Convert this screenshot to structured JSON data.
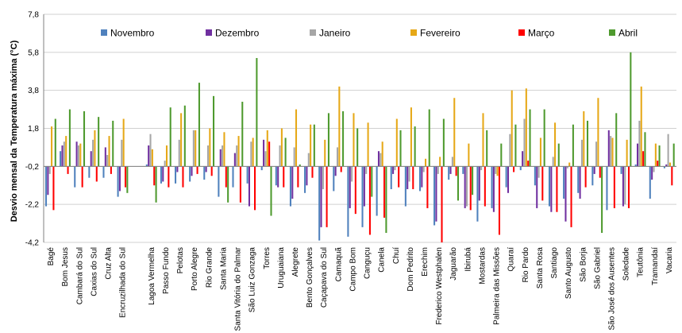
{
  "chart_data": {
    "type": "bar",
    "title": "",
    "xlabel": "",
    "ylabel": "Desvio mensal da Temperatura máxima (°C)",
    "ylim": [
      -4.2,
      7.8
    ],
    "yticks": [
      "7,8",
      "5,8",
      "3,8",
      "1,8",
      "-0,2",
      "-2,2",
      "-4,2"
    ],
    "grid": true,
    "legend_position": "top",
    "colors": [
      "#4f81bd",
      "#7030a0",
      "#a6a6a6",
      "#e6a817",
      "#ff0000",
      "#4e9a2e"
    ],
    "categories": [
      "Bagé",
      "Bom Jesus",
      "Cambará do Sul",
      "Caxias do Sul",
      "Cruz Alta",
      "Encruzilhada do Sul",
      "Lagoa Vermelha",
      "Passo Fundo",
      "Pelotas",
      "Porto Alegre",
      "Rio Grande",
      "Santa Maria",
      "Santa Vitória do Palmar",
      "São Luiz Gonzaga",
      "Torres",
      "Uruguaiana",
      "Alegrete",
      "Bento Gonçalves",
      "Caçapava do Sul",
      "Camaquã",
      "Campo Bom",
      "Canguçu",
      "Canela",
      "Chuí",
      "Dom Pedrito",
      "Erechim",
      "Frederico Westphalen",
      "Jaguarão",
      "Ibirubá",
      "Mostardas",
      "Palmeira das Missões",
      "Quaraí",
      "Rio Pardo",
      "Santa Rosa",
      "Santiago",
      "Santo Augusto",
      "São Borja",
      "São Gabriel",
      "São José dos Ausentes",
      "Soledade",
      "Teutônia",
      "Tramandaí",
      "Vacaria"
    ],
    "gap_after_index": 5,
    "series": [
      {
        "name": "Novembro",
        "values": [
          -2.3,
          0.6,
          -1.3,
          -0.8,
          -0.8,
          -1.8,
          -0.1,
          -1.1,
          -1.1,
          -1.0,
          -0.9,
          -1.8,
          -1.3,
          -1.1,
          -0.4,
          -1.2,
          -2.3,
          -1.6,
          -4.1,
          -1.5,
          -3.9,
          -3.4,
          -2.8,
          -1.4,
          -2.3,
          -1.5,
          -3.3,
          -0.9,
          -0.6,
          -3.1,
          -2.4,
          -1.3,
          -0.4,
          -1.2,
          -2.3,
          -1.9,
          -1.6,
          -1.2,
          -2.5,
          -0.6,
          -0.1,
          -1.9,
          -0.3
        ]
      },
      {
        "name": "Dezembro",
        "values": [
          -1.7,
          0.9,
          1.1,
          0.6,
          0.8,
          -1.5,
          0.9,
          -1.0,
          -0.5,
          -0.7,
          -0.5,
          0.7,
          0.5,
          -2.3,
          1.2,
          -1.3,
          -1.9,
          -1.2,
          -3.4,
          -0.7,
          -2.4,
          -2.3,
          0.6,
          -0.6,
          -1.4,
          -1.3,
          -3.1,
          -0.6,
          -2.4,
          -2.0,
          -2.6,
          -1.6,
          0.6,
          -2.4,
          -2.6,
          -3.1,
          -1.9,
          -0.6,
          1.7,
          -2.3,
          1.0,
          -0.9,
          -0.1
        ]
      },
      {
        "name": "Janeiro",
        "values": [
          -0.6,
          1.1,
          0.9,
          1.2,
          0.4,
          1.2,
          1.5,
          0.1,
          1.2,
          1.7,
          0.9,
          0.9,
          0.9,
          1.1,
          0.6,
          0.9,
          0.8,
          0.5,
          -1.4,
          0.8,
          -1.0,
          -0.6,
          0.5,
          -0.4,
          -1.0,
          -0.5,
          -0.6,
          0.3,
          -2.3,
          -0.4,
          -0.6,
          1.5,
          2.3,
          -0.8,
          0.3,
          -0.3,
          1.2,
          1.1,
          1.4,
          -2.2,
          2.2,
          -0.5,
          1.5
        ]
      },
      {
        "name": "Fevereiro",
        "values": [
          1.9,
          1.4,
          1.0,
          1.7,
          1.4,
          2.3,
          0.7,
          0.9,
          2.6,
          1.7,
          1.8,
          1.6,
          1.4,
          1.3,
          1.7,
          1.8,
          2.8,
          2.0,
          1.2,
          4.0,
          2.6,
          2.1,
          1.1,
          2.3,
          2.9,
          0.2,
          0.3,
          3.4,
          1.0,
          2.6,
          -0.7,
          3.8,
          3.9,
          1.3,
          2.1,
          0.0,
          2.7,
          3.4,
          1.3,
          1.2,
          4.0,
          1.0,
          0.0
        ]
      },
      {
        "name": "Março",
        "values": [
          -2.5,
          -0.6,
          -1.3,
          -1.0,
          -0.6,
          -1.3,
          -1.2,
          -1.3,
          -1.3,
          -0.6,
          -0.7,
          -1.3,
          -2.1,
          -2.5,
          1.1,
          -1.3,
          -1.3,
          -0.8,
          -3.4,
          -0.5,
          -2.7,
          -3.8,
          -2.9,
          -1.3,
          -1.4,
          -2.4,
          -4.2,
          -0.7,
          -2.5,
          -2.3,
          -3.8,
          -0.5,
          0.1,
          -2.0,
          -2.6,
          -3.4,
          -1.3,
          -0.8,
          -2.4,
          -2.4,
          0.6,
          0.1,
          -1.2
        ]
      },
      {
        "name": "Abril",
        "values": [
          2.3,
          2.8,
          2.7,
          2.4,
          2.2,
          -1.6,
          -2.1,
          2.9,
          3.0,
          4.2,
          3.5,
          -2.1,
          3.2,
          5.5,
          -2.8,
          1.3,
          -0.1,
          2.0,
          2.6,
          2.7,
          1.8,
          -1.8,
          -3.7,
          1.7,
          1.9,
          2.8,
          2.3,
          -2.0,
          -1.7,
          1.7,
          1.0,
          2.0,
          2.8,
          2.8,
          1.0,
          2.0,
          2.2,
          -3.7,
          2.6,
          5.8,
          1.6,
          0.9,
          1.0
        ]
      }
    ]
  }
}
